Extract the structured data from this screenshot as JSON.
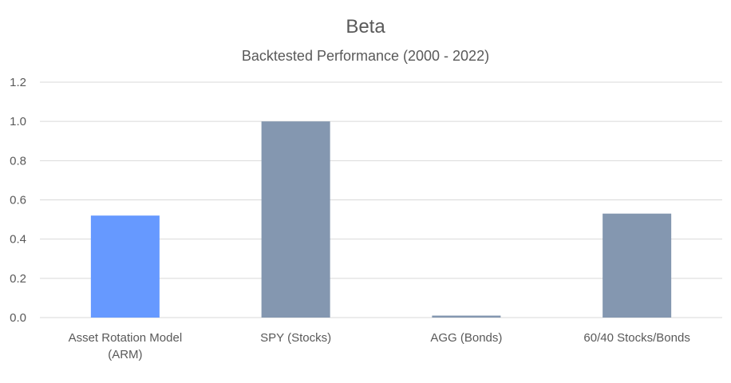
{
  "chart_data": {
    "type": "bar",
    "title": "Beta",
    "subtitle": "Backtested Performance (2000 - 2022)",
    "categories": [
      [
        "Asset Rotation Model",
        "(ARM)"
      ],
      [
        "SPY (Stocks)"
      ],
      [
        "AGG (Bonds)"
      ],
      [
        "60/40 Stocks/Bonds"
      ]
    ],
    "values": [
      0.52,
      1.0,
      0.01,
      0.53
    ],
    "colors": [
      "#6699ff",
      "#8497b0",
      "#8497b0",
      "#8497b0"
    ],
    "yticks": [
      "0.0",
      "0.2",
      "0.4",
      "0.6",
      "0.8",
      "1.0",
      "1.2"
    ],
    "ylim": [
      0,
      1.2
    ],
    "xlabel": "",
    "ylabel": "",
    "grid": true,
    "gridColor": "#d9d9d9"
  }
}
